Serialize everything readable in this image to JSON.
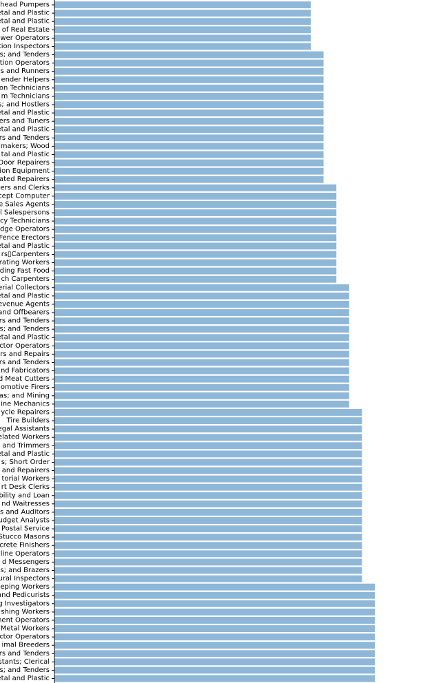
{
  "chart_data": {
    "type": "bar",
    "orientation": "horizontal",
    "color": "#8fb8d8",
    "axis_color": "#000000",
    "title": "",
    "xlabel": "",
    "ylabel": "",
    "xlim": [
      0,
      25
    ],
    "grid": false,
    "legend": "none",
    "categories": [
      "head Pumpers",
      "etal and Plastic",
      "etal and Plastic",
      "of Real Estate",
      "wer Operators",
      "ction Inspectors",
      "s; and Tenders",
      "tion Operators",
      "s and Runners",
      "ender Helpers",
      "on Technicians",
      "m Technicians",
      "s; and Hostlers",
      "etal and Plastic",
      "ers and Tuners",
      "etal and Plastic",
      "rs and Tenders",
      "makers; Wood",
      "tal and Plastic",
      "Door Repairers",
      "ion Equipment",
      "ated Repairers",
      "ers and Clerks",
      "cept Computer",
      "e Sales Agents",
      "l Salespersons",
      "cy Technicians",
      "dge Operators",
      "Fence Erectors",
      "etal and Plastic",
      "rs▯Carpenters",
      "rating Workers",
      "ding Fast Food",
      "ch Carpenters",
      "erial Collectors",
      "etal and Plastic",
      "evenue Agents",
      "and Offbearers",
      "rs and Tenders",
      "s; and Tenders",
      "etal and Plastic",
      "ctor Operators",
      "rs and Repairs",
      "rs and Tenders",
      "nd Fabricators",
      "d Meat Cutters",
      "omotive Firers",
      "as; and Mining",
      "ine Mechanics",
      "ycle Repairers",
      "Tire Builders",
      "egal Assistants",
      "elated Workers",
      "and Trimmers",
      "etal and Plastic",
      "s; Short Order",
      "and Repairers",
      "torial Workers",
      "rt Desk Clerks",
      "bility and Loan",
      "nd Waitresses",
      "s and Auditors",
      "udget Analysts",
      "Postal Service",
      "Stucco Masons",
      "crete Finishers",
      "line Operators",
      "d Messengers",
      "s; and Brazers",
      "ural Inspectors",
      "eping Workers",
      "and Pedicurists",
      "g Investigators",
      "shing Workers",
      "ment Operators",
      "Metal Workers",
      "ctor Operators",
      "imal Breeders",
      "rs and Tenders",
      "stants; Clerical",
      "s; and Tenders",
      "etal and Plastic"
    ],
    "values": [
      20,
      20,
      20,
      20,
      20,
      20,
      21,
      21,
      21,
      21,
      21,
      21,
      21,
      21,
      21,
      21,
      21,
      21,
      21,
      21,
      21,
      21,
      22,
      22,
      22,
      22,
      22,
      22,
      22,
      22,
      22,
      22,
      22,
      22,
      23,
      23,
      23,
      23,
      23,
      23,
      23,
      23,
      23,
      23,
      23,
      23,
      23,
      23,
      23,
      24,
      24,
      24,
      24,
      24,
      24,
      24,
      24,
      24,
      24,
      24,
      24,
      24,
      24,
      24,
      24,
      24,
      24,
      24,
      24,
      24,
      25,
      25,
      25,
      25,
      25,
      25,
      25,
      25,
      25,
      25,
      25,
      25
    ]
  }
}
